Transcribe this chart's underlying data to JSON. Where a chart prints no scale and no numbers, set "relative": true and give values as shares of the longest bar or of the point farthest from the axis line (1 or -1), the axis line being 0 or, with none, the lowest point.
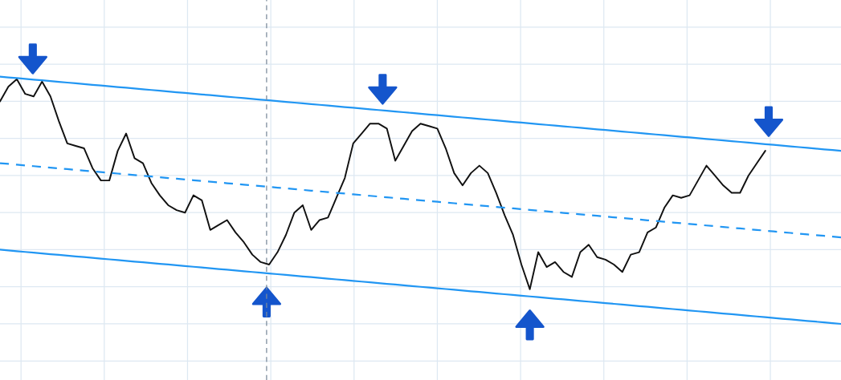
{
  "chart_data": {
    "type": "line",
    "relative": true,
    "grid": true,
    "marker": "none",
    "categories": [
      null,
      null,
      null,
      null,
      null,
      null,
      null,
      null,
      null,
      null,
      null,
      null,
      null,
      null,
      null,
      null,
      null,
      null,
      null,
      null,
      null,
      null,
      null,
      null,
      null,
      null,
      null,
      null,
      null,
      null,
      null,
      null,
      null,
      null,
      null,
      null,
      null,
      null,
      null,
      null,
      null,
      null,
      null,
      null,
      null,
      null,
      null,
      null,
      null,
      null,
      null,
      null,
      null,
      null,
      null,
      null,
      null,
      null,
      null,
      null,
      null,
      null,
      null,
      null,
      null,
      null,
      null,
      null,
      null,
      null,
      null,
      null,
      null,
      null,
      null,
      null,
      null,
      null,
      null,
      null,
      null,
      null,
      null,
      null,
      null,
      null,
      null,
      null,
      null,
      null,
      null,
      null,
      null,
      null,
      null,
      null,
      null,
      null,
      null,
      null,
      null
    ],
    "series": [
      {
        "color": "#111111",
        "line_style": "solid",
        "values": [
          0.9,
          0.96,
          0.99,
          0.93,
          0.92,
          0.98,
          0.92,
          0.82,
          0.73,
          0.72,
          0.71,
          0.63,
          0.58,
          0.58,
          0.7,
          0.77,
          0.67,
          0.65,
          0.57,
          0.52,
          0.48,
          0.46,
          0.45,
          0.52,
          0.5,
          0.38,
          0.4,
          0.42,
          0.37,
          0.33,
          0.28,
          0.25,
          0.24,
          0.29,
          0.36,
          0.45,
          0.48,
          0.38,
          0.42,
          0.43,
          0.51,
          0.59,
          0.73,
          0.77,
          0.81,
          0.81,
          0.79,
          0.66,
          0.72,
          0.78,
          0.81,
          0.8,
          0.79,
          0.71,
          0.61,
          0.56,
          0.61,
          0.64,
          0.61,
          0.53,
          0.44,
          0.36,
          0.24,
          0.14,
          0.29,
          0.23,
          0.25,
          0.21,
          0.19,
          0.29,
          0.32,
          0.27,
          0.26,
          0.24,
          0.21,
          0.28,
          0.29,
          0.37,
          0.39,
          0.47,
          0.52,
          0.51,
          0.52,
          0.58,
          0.64,
          0.6,
          0.56,
          0.53,
          0.53,
          0.6,
          0.65,
          0.7,
          null,
          null,
          null,
          null,
          null,
          null,
          null,
          null,
          null
        ]
      },
      {
        "color": "#2196f3",
        "line_style": "solid",
        "values": [
          1.0,
          0.997,
          0.994,
          0.991,
          0.988,
          0.985,
          0.982,
          0.979,
          0.976,
          0.973,
          0.97,
          0.967,
          0.964,
          0.961,
          0.958,
          0.955,
          0.952,
          0.949,
          0.946,
          0.943,
          0.94,
          0.937,
          0.934,
          0.931,
          0.928,
          0.925,
          0.922,
          0.919,
          0.916,
          0.913,
          0.91,
          0.907,
          0.904,
          0.901,
          0.898,
          0.895,
          0.892,
          0.889,
          0.886,
          0.883,
          0.88,
          0.877,
          0.874,
          0.871,
          0.868,
          0.865,
          0.862,
          0.859,
          0.856,
          0.853,
          0.85,
          0.847,
          0.844,
          0.841,
          0.838,
          0.835,
          0.832,
          0.829,
          0.826,
          0.823,
          0.82,
          0.817,
          0.814,
          0.811,
          0.808,
          0.805,
          0.802,
          0.799,
          0.796,
          0.793,
          0.79,
          0.787,
          0.784,
          0.781,
          0.778,
          0.775,
          0.772,
          0.769,
          0.766,
          0.763,
          0.76,
          0.757,
          0.754,
          0.751,
          0.748,
          0.745,
          0.742,
          0.739,
          0.736,
          0.733,
          0.73,
          0.727,
          0.724,
          0.721,
          0.718,
          0.715,
          0.712,
          0.709,
          0.706,
          0.703,
          0.7
        ]
      },
      {
        "color": "#2196f3",
        "line_style": "dashed",
        "values": [
          0.65,
          0.647,
          0.644,
          0.641,
          0.638,
          0.635,
          0.632,
          0.629,
          0.626,
          0.623,
          0.62,
          0.617,
          0.614,
          0.611,
          0.608,
          0.605,
          0.602,
          0.599,
          0.596,
          0.593,
          0.59,
          0.587,
          0.584,
          0.581,
          0.578,
          0.575,
          0.572,
          0.569,
          0.566,
          0.563,
          0.56,
          0.557,
          0.554,
          0.551,
          0.548,
          0.545,
          0.542,
          0.539,
          0.536,
          0.533,
          0.53,
          0.527,
          0.524,
          0.521,
          0.518,
          0.515,
          0.512,
          0.509,
          0.506,
          0.503,
          0.5,
          0.497,
          0.494,
          0.491,
          0.488,
          0.485,
          0.482,
          0.479,
          0.476,
          0.473,
          0.47,
          0.467,
          0.464,
          0.461,
          0.458,
          0.455,
          0.452,
          0.449,
          0.446,
          0.443,
          0.44,
          0.437,
          0.434,
          0.431,
          0.428,
          0.425,
          0.422,
          0.419,
          0.416,
          0.413,
          0.41,
          0.407,
          0.404,
          0.401,
          0.398,
          0.395,
          0.392,
          0.389,
          0.386,
          0.383,
          0.38,
          0.377,
          0.374,
          0.371,
          0.368,
          0.365,
          0.362,
          0.359,
          0.356,
          0.353,
          0.35
        ]
      },
      {
        "color": "#2196f3",
        "line_style": "solid",
        "values": [
          0.3,
          0.297,
          0.294,
          0.291,
          0.288,
          0.285,
          0.282,
          0.279,
          0.276,
          0.273,
          0.27,
          0.267,
          0.264,
          0.261,
          0.258,
          0.255,
          0.252,
          0.249,
          0.246,
          0.243,
          0.24,
          0.237,
          0.234,
          0.231,
          0.228,
          0.225,
          0.222,
          0.219,
          0.216,
          0.213,
          0.21,
          0.207,
          0.204,
          0.201,
          0.198,
          0.195,
          0.192,
          0.189,
          0.186,
          0.183,
          0.18,
          0.177,
          0.174,
          0.171,
          0.168,
          0.165,
          0.162,
          0.159,
          0.156,
          0.153,
          0.15,
          0.147,
          0.144,
          0.141,
          0.138,
          0.135,
          0.132,
          0.129,
          0.126,
          0.123,
          0.12,
          0.117,
          0.114,
          0.111,
          0.108,
          0.105,
          0.102,
          0.099,
          0.096,
          0.093,
          0.09,
          0.087,
          0.084,
          0.081,
          0.078,
          0.075,
          0.072,
          0.069,
          0.066,
          0.063,
          0.06,
          0.057,
          0.054,
          0.051,
          0.048,
          0.045,
          0.042,
          0.039,
          0.036,
          0.033,
          0.03,
          0.027,
          0.024,
          0.021,
          0.018,
          0.015,
          0.012,
          0.009,
          0.006,
          0.003,
          0.0
        ]
      }
    ]
  }
}
